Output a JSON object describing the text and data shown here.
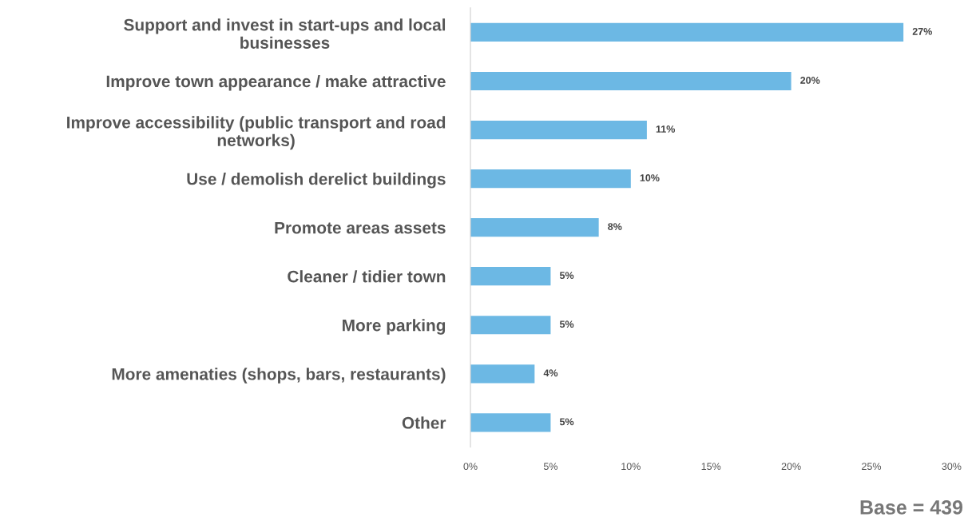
{
  "chart_data": {
    "type": "bar",
    "orientation": "horizontal",
    "categories": [
      "Support and invest in start-ups and local\nbusinesses",
      "Improve town appearance / make attractive",
      "Improve accessibility (public transport and road\nnetworks)",
      "Use / demolish derelict buildings",
      "Promote areas assets",
      "Cleaner / tidier town",
      "More parking",
      "More amenaties (shops, bars, restaurants)",
      "Other"
    ],
    "values": [
      27,
      20,
      11,
      10,
      8,
      5,
      5,
      4,
      5
    ],
    "color": "#6cb8e4",
    "value_labels": [
      "27%",
      "20%",
      "11%",
      "10%",
      "8%",
      "5%",
      "5%",
      "4%",
      "5%"
    ],
    "xlim": [
      0,
      30
    ],
    "xticks": [
      {
        "value": 0,
        "label": "0%"
      },
      {
        "value": 5,
        "label": "5%"
      },
      {
        "value": 10,
        "label": "10%"
      },
      {
        "value": 15,
        "label": "15%"
      },
      {
        "value": 20,
        "label": "20%"
      },
      {
        "value": 25,
        "label": "25%"
      },
      {
        "value": 30,
        "label": "30%"
      }
    ],
    "grid": false,
    "legend": false,
    "annotations": [
      "Base = 439"
    ]
  }
}
